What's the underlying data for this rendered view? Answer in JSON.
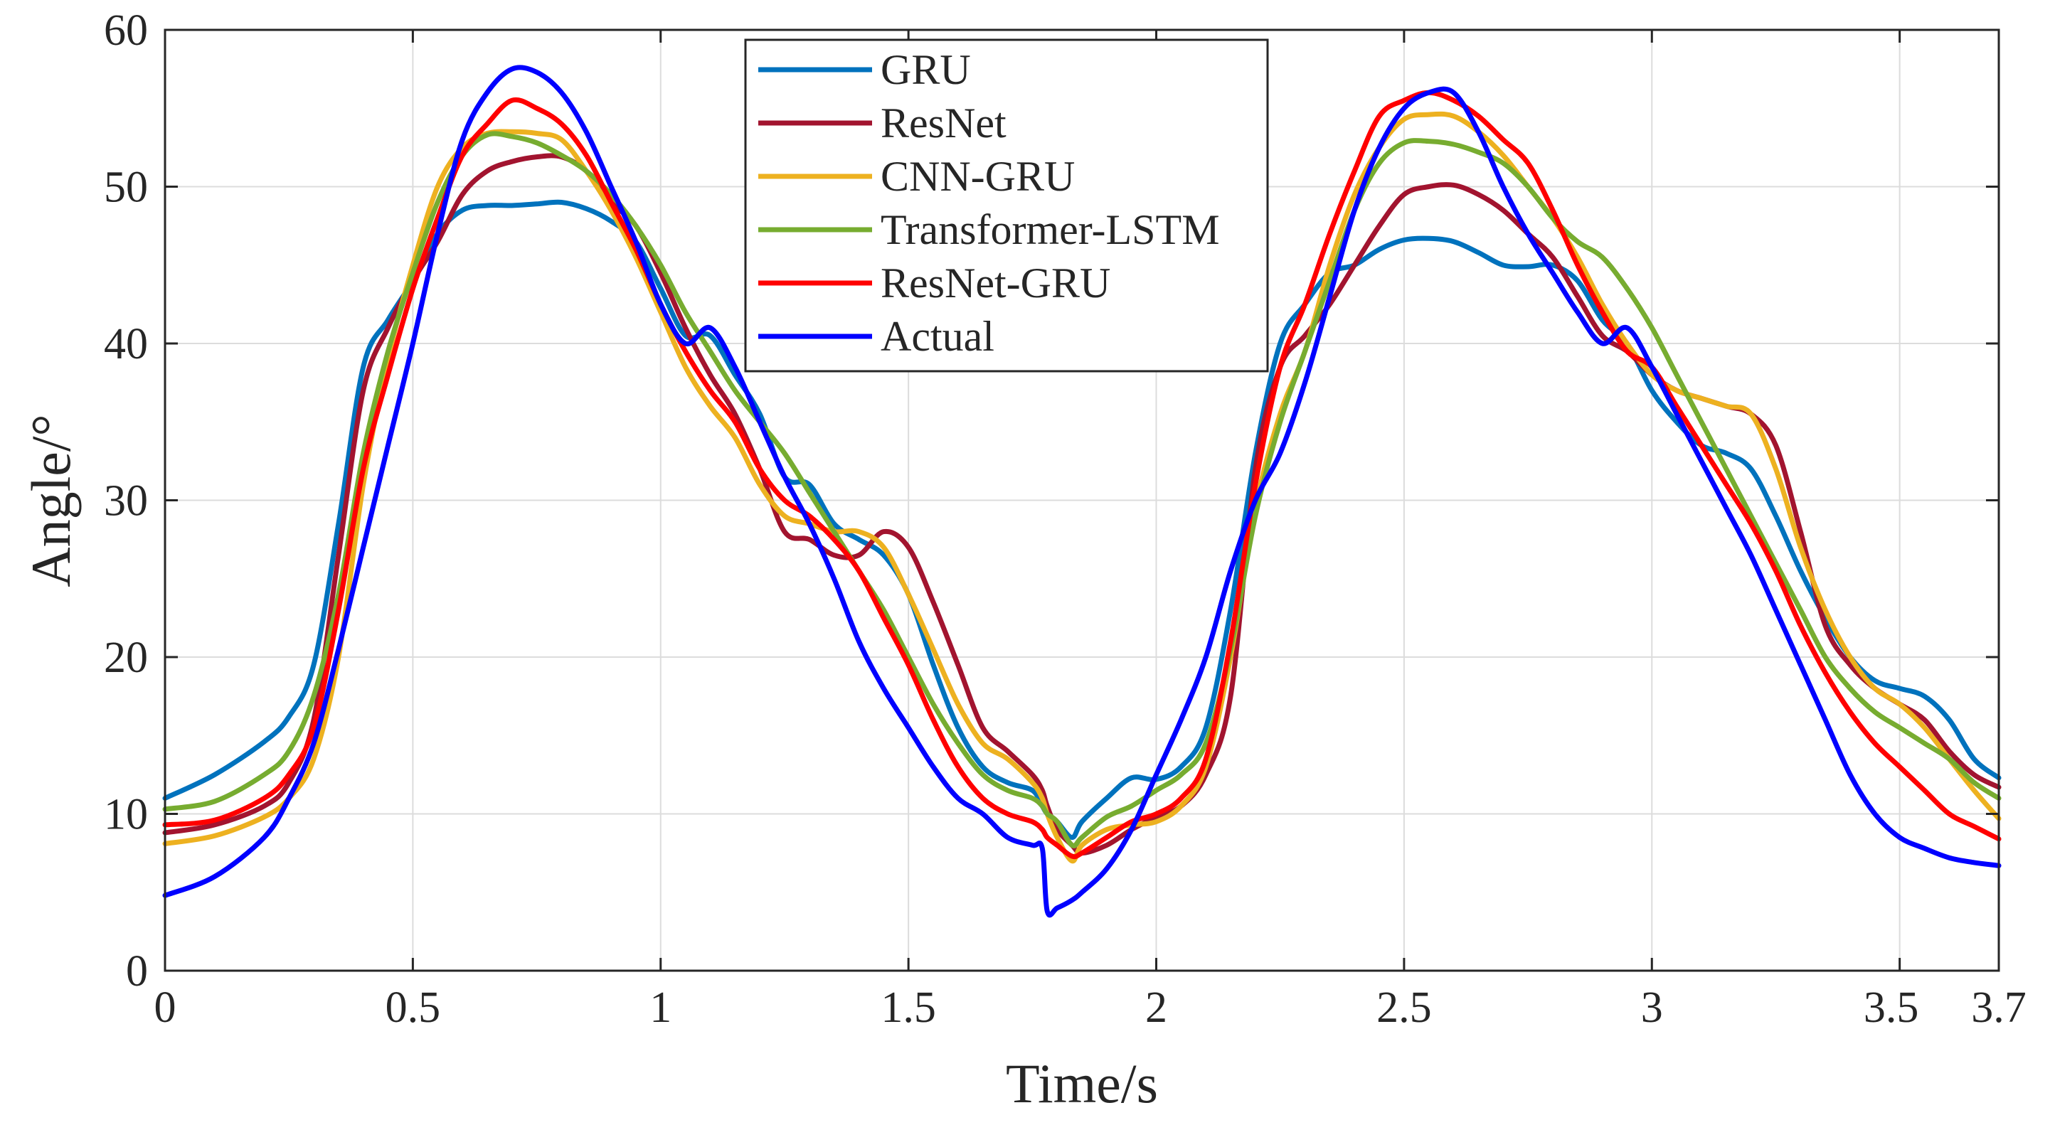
{
  "chart_data": {
    "type": "line",
    "title": "",
    "xlabel": "Time/s",
    "ylabel": "Angle/°",
    "xlim": [
      0,
      3.7
    ],
    "ylim": [
      0,
      60
    ],
    "grid": true,
    "legend_position": "top-center",
    "xticks": [
      0,
      0.5,
      1,
      1.5,
      2,
      2.5,
      3,
      3.5,
      3.7
    ],
    "xtick_labels": [
      "0",
      "0.5",
      "1",
      "1.5",
      "2",
      "2.5",
      "3",
      "3.5",
      "3.7"
    ],
    "yticks": [
      0,
      10,
      20,
      30,
      40,
      50,
      60
    ],
    "ytick_labels": [
      "0",
      "10",
      "20",
      "30",
      "40",
      "50",
      "60"
    ],
    "x": [
      0,
      0.1,
      0.2,
      0.25,
      0.3,
      0.35,
      0.4,
      0.45,
      0.5,
      0.55,
      0.6,
      0.65,
      0.7,
      0.75,
      0.8,
      0.85,
      0.9,
      0.95,
      1.0,
      1.05,
      1.1,
      1.15,
      1.2,
      1.25,
      1.3,
      1.35,
      1.4,
      1.45,
      1.5,
      1.55,
      1.6,
      1.65,
      1.7,
      1.75,
      1.77,
      1.78,
      1.8,
      1.83,
      1.85,
      1.9,
      1.95,
      2.0,
      2.05,
      2.1,
      2.15,
      2.2,
      2.25,
      2.3,
      2.35,
      2.4,
      2.45,
      2.5,
      2.55,
      2.6,
      2.65,
      2.7,
      2.75,
      2.8,
      2.85,
      2.9,
      2.95,
      3.0,
      3.05,
      3.1,
      3.15,
      3.2,
      3.25,
      3.3,
      3.35,
      3.4,
      3.45,
      3.5,
      3.55,
      3.6,
      3.65,
      3.7
    ],
    "series": [
      {
        "name": "GRU",
        "color": "#0072BD",
        "values": [
          11.0,
          12.5,
          14.6,
          16.2,
          19.5,
          28.5,
          38.5,
          41.5,
          44.0,
          47.0,
          48.5,
          48.8,
          48.8,
          48.9,
          49.0,
          48.6,
          47.8,
          46.5,
          43.5,
          40.5,
          40.5,
          38.0,
          35.5,
          31.5,
          31.0,
          28.5,
          27.5,
          26.5,
          24.0,
          19.5,
          15.5,
          13.0,
          12.0,
          11.5,
          10.5,
          10.0,
          9.5,
          8.5,
          9.5,
          11.0,
          12.3,
          12.2,
          13.0,
          15.5,
          23.0,
          33.0,
          40.0,
          42.5,
          44.5,
          45.0,
          46.0,
          46.6,
          46.7,
          46.5,
          45.8,
          45.0,
          44.9,
          45.0,
          44.0,
          41.5,
          40.0,
          37.0,
          35.0,
          33.5,
          33.0,
          32.0,
          29.0,
          25.5,
          22.5,
          20.0,
          18.5,
          18.0,
          17.5,
          16.0,
          13.5,
          12.3
        ]
      },
      {
        "name": "ResNet",
        "color": "#A2142F",
        "values": [
          8.8,
          9.3,
          10.5,
          12.0,
          16.0,
          26.5,
          37.0,
          41.0,
          44.0,
          46.5,
          49.5,
          51.0,
          51.6,
          51.9,
          51.9,
          51.0,
          49.0,
          47.5,
          44.5,
          41.0,
          38.0,
          35.5,
          32.0,
          28.0,
          27.5,
          26.5,
          26.5,
          28.0,
          27.0,
          23.5,
          19.5,
          15.5,
          14.0,
          12.5,
          11.5,
          10.5,
          9.0,
          8.0,
          7.5,
          8.0,
          9.0,
          9.8,
          10.5,
          12.5,
          17.5,
          32.0,
          38.5,
          40.5,
          42.5,
          45.0,
          47.5,
          49.5,
          50.0,
          50.1,
          49.5,
          48.5,
          47.0,
          45.5,
          43.0,
          40.5,
          39.5,
          38.0,
          37.0,
          36.5,
          36.0,
          35.5,
          33.5,
          28.0,
          22.0,
          19.5,
          18.0,
          17.0,
          16.0,
          14.0,
          12.5,
          11.7
        ]
      },
      {
        "name": "CNN-GRU",
        "color": "#EDB120",
        "values": [
          8.1,
          8.6,
          9.8,
          11.0,
          13.5,
          20.0,
          31.0,
          39.0,
          45.0,
          50.0,
          52.5,
          53.4,
          53.5,
          53.4,
          53.0,
          51.0,
          48.5,
          45.5,
          42.0,
          38.5,
          36.0,
          34.0,
          31.0,
          29.0,
          28.5,
          28.0,
          28.0,
          27.0,
          24.0,
          20.5,
          17.0,
          14.5,
          13.5,
          12.0,
          11.0,
          10.0,
          8.5,
          7.0,
          8.0,
          9.0,
          9.3,
          9.5,
          10.5,
          13.0,
          20.0,
          29.5,
          35.5,
          39.5,
          45.0,
          49.5,
          52.5,
          54.3,
          54.6,
          54.5,
          53.5,
          52.0,
          50.0,
          48.0,
          45.5,
          42.5,
          40.0,
          38.0,
          37.0,
          36.5,
          36.0,
          35.5,
          32.0,
          27.0,
          23.0,
          20.0,
          18.0,
          17.0,
          15.5,
          13.5,
          11.5,
          9.7
        ]
      },
      {
        "name": "Transformer-LSTM",
        "color": "#77AC30",
        "values": [
          10.3,
          10.8,
          12.5,
          14.0,
          17.5,
          24.0,
          33.0,
          39.5,
          44.5,
          49.0,
          52.0,
          53.3,
          53.2,
          52.8,
          52.0,
          51.0,
          49.5,
          47.5,
          45.0,
          42.0,
          39.5,
          37.0,
          35.0,
          33.0,
          30.5,
          28.0,
          25.5,
          23.0,
          20.0,
          17.0,
          14.5,
          12.5,
          11.5,
          11.0,
          10.5,
          10.0,
          9.5,
          8.0,
          8.5,
          9.8,
          10.5,
          11.5,
          12.5,
          14.5,
          20.5,
          29.0,
          35.0,
          39.5,
          44.0,
          48.5,
          51.5,
          52.8,
          52.9,
          52.7,
          52.2,
          51.5,
          50.0,
          48.0,
          46.5,
          45.5,
          43.5,
          41.0,
          38.0,
          35.0,
          32.0,
          29.0,
          26.0,
          23.0,
          20.0,
          18.0,
          16.5,
          15.5,
          14.5,
          13.5,
          12.0,
          11.0
        ]
      },
      {
        "name": "ResNet-GRU",
        "color": "#FF0000",
        "values": [
          9.3,
          9.6,
          11.0,
          12.5,
          15.5,
          23.0,
          32.0,
          38.0,
          43.5,
          48.0,
          52.0,
          54.0,
          55.5,
          55.0,
          54.0,
          52.0,
          49.0,
          46.0,
          42.5,
          39.5,
          37.0,
          35.0,
          32.0,
          30.0,
          29.0,
          27.5,
          25.5,
          22.5,
          19.5,
          16.0,
          13.0,
          11.0,
          10.0,
          9.5,
          9.0,
          8.5,
          8.0,
          7.3,
          7.5,
          8.5,
          9.5,
          10.0,
          11.0,
          13.5,
          21.0,
          31.0,
          38.5,
          42.5,
          47.0,
          51.0,
          54.5,
          55.5,
          56.0,
          55.5,
          54.5,
          53.0,
          51.5,
          48.5,
          45.0,
          42.0,
          39.5,
          38.5,
          36.0,
          33.5,
          31.0,
          28.5,
          25.5,
          22.0,
          19.0,
          16.5,
          14.5,
          13.0,
          11.5,
          10.0,
          9.2,
          8.4
        ]
      },
      {
        "name": "Actual",
        "color": "#0000FF",
        "values": [
          4.8,
          6.0,
          8.5,
          11.0,
          14.5,
          20.5,
          27.0,
          33.5,
          40.0,
          47.0,
          53.0,
          56.0,
          57.5,
          57.3,
          56.0,
          53.5,
          50.0,
          46.5,
          42.5,
          40.0,
          41.0,
          38.5,
          35.0,
          31.5,
          28.5,
          25.0,
          21.0,
          18.0,
          15.5,
          13.0,
          11.0,
          10.0,
          8.5,
          8.0,
          7.8,
          3.8,
          4.0,
          4.5,
          5.0,
          6.5,
          9.0,
          12.5,
          16.0,
          20.0,
          25.5,
          30.0,
          33.0,
          37.5,
          43.0,
          48.5,
          52.5,
          55.0,
          56.0,
          56.0,
          53.5,
          50.0,
          47.0,
          44.5,
          42.0,
          40.0,
          41.0,
          38.5,
          35.5,
          32.5,
          29.5,
          26.5,
          23.0,
          19.5,
          16.0,
          12.5,
          10.0,
          8.5,
          7.8,
          7.2,
          6.9,
          6.7
        ]
      }
    ]
  }
}
